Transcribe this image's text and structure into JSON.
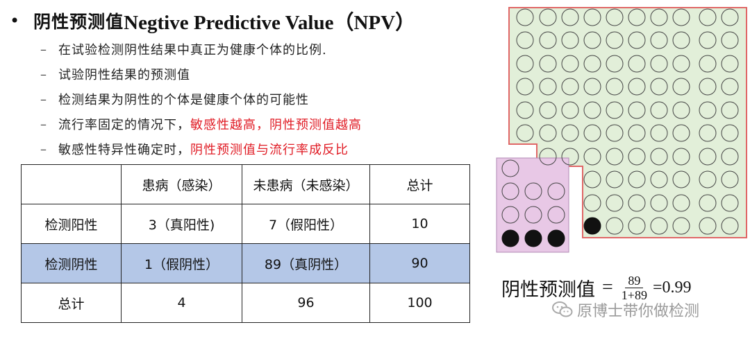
{
  "title": {
    "bullet": "•",
    "cn": "阴性预测值",
    "en": "Negtive Predictive Value（NPV）"
  },
  "bullets": [
    {
      "dash": "–",
      "text": "在试验检测阴性结果中真正为健康个体的比例.",
      "highlight": ""
    },
    {
      "dash": "–",
      "text": "试验阴性结果的预测值",
      "highlight": ""
    },
    {
      "dash": "–",
      "text": "检测结果为阴性的个体是健康个体的可能性",
      "highlight": ""
    },
    {
      "dash": "–",
      "text": "流行率固定的情况下，",
      "highlight": "敏感性越高，阴性预测值越高"
    },
    {
      "dash": "–",
      "text": "敏感性特异性确定时，",
      "highlight": "阴性预测值与流行率成反比"
    }
  ],
  "table": {
    "header": [
      "",
      "患病（感染）",
      "未患病（未感染）",
      "总计"
    ],
    "rows": [
      [
        "检测阳性",
        "3（真阳性)",
        "7（假阳性）",
        "10"
      ],
      [
        "检测阴性",
        "1（假阴性）",
        "89（真阴性）",
        "90"
      ],
      [
        "总计",
        "4",
        "96",
        "100"
      ]
    ]
  },
  "formula": {
    "label": "阴性预测值",
    "equals": "=",
    "numerator": "89",
    "denominator": "1+89",
    "result": "=0.99"
  },
  "watermark": {
    "text": "原博士带你做检测",
    "icon": "wechat-icon"
  },
  "diagram": {
    "healthy_fill": "#e2efd9",
    "healthy_border": "#e06666",
    "sick_fill": "#e8c8e6",
    "sick_border": "#b189b4",
    "true_negative_count": 89,
    "false_negative_count": 1,
    "true_positive_count": 3,
    "false_positive_count": 7
  }
}
